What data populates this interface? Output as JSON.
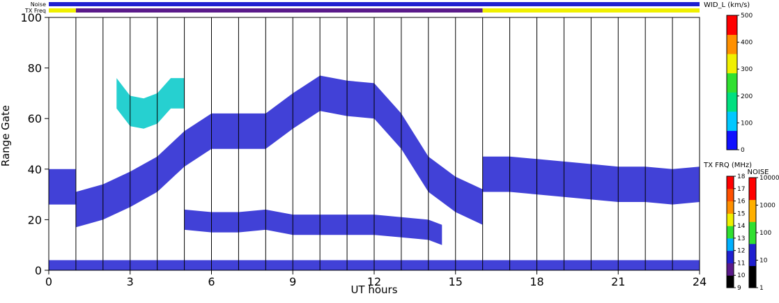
{
  "chart_data": {
    "type": "heatmap",
    "xlabel": "UT hours",
    "ylabel": "Range Gate",
    "xlim": [
      0,
      24
    ],
    "ylim": [
      0,
      100
    ],
    "x_ticks": [
      0,
      3,
      6,
      9,
      12,
      15,
      18,
      21,
      24
    ],
    "y_ticks": [
      0,
      20,
      40,
      60,
      80,
      100
    ],
    "vertical_gridlines_hours": [
      1,
      2,
      3,
      4,
      5,
      6,
      7,
      8,
      9,
      10,
      11,
      12,
      13,
      14,
      15,
      16,
      17,
      18,
      19,
      20,
      21,
      22,
      23
    ],
    "top_strips": [
      {
        "label": "Noise",
        "segments": [
          [
            0,
            24,
            "#2020d0"
          ]
        ]
      },
      {
        "label": "TX Freq",
        "segments": [
          [
            0,
            1,
            "#f0f000"
          ],
          [
            1,
            16,
            "#5a1a8a"
          ],
          [
            16,
            24,
            "#f0f000"
          ]
        ]
      }
    ],
    "colorbars": [
      {
        "title": "WID_L (km/s)",
        "range": [
          0,
          500
        ],
        "ticks": [
          0,
          100,
          200,
          300,
          400,
          500
        ],
        "colors": [
          "#1010ff",
          "#00c8ff",
          "#00e080",
          "#30e030",
          "#f0f000",
          "#ff9000",
          "#ff0000"
        ]
      },
      {
        "title": "TX FRQ (MHz)",
        "ticks": [
          9,
          10,
          11,
          12,
          13,
          14,
          15,
          16,
          17,
          18
        ],
        "colors": [
          "#000000",
          "#5a1a8a",
          "#2020d0",
          "#00b0ff",
          "#30e030",
          "#f0f000",
          "#ff9000",
          "#ff5000",
          "#ff0000"
        ]
      },
      {
        "title": "NOISE",
        "ticks": [
          "1",
          "10",
          "100",
          "1000",
          "10000"
        ],
        "colors": [
          "#000000",
          "#2020d0",
          "#30e030",
          "#ffb000",
          "#ff0000"
        ]
      }
    ],
    "features": [
      {
        "name": "dominant-echo",
        "color": "#2020d0",
        "x": [
          0,
          1,
          1,
          2,
          3,
          4,
          5,
          6,
          7,
          8,
          9,
          10,
          11,
          12,
          13,
          14,
          15,
          16,
          16,
          17,
          18,
          19,
          20,
          21,
          22,
          23,
          24
        ],
        "y": [
          33,
          33,
          24,
          27,
          32,
          38,
          48,
          55,
          55,
          55,
          63,
          70,
          68,
          67,
          55,
          38,
          30,
          25,
          38,
          38,
          37,
          36,
          35,
          34,
          34,
          33,
          34
        ],
        "thickness": 7
      },
      {
        "name": "low-band",
        "color": "#2020d0",
        "x": [
          5,
          6,
          7,
          8,
          9,
          10,
          11,
          12,
          13,
          14,
          14.5
        ],
        "y": [
          20,
          19,
          19,
          20,
          18,
          18,
          18,
          18,
          17,
          16,
          14
        ],
        "thickness": 4
      },
      {
        "name": "ground-gates",
        "color": "#2020d0",
        "x": [
          0,
          24
        ],
        "y": [
          2,
          2
        ],
        "thickness": 2
      },
      {
        "name": "cusp-patch",
        "color": "#00c8c8",
        "x": [
          2.5,
          3,
          3.5,
          4,
          4.5,
          5
        ],
        "y": [
          70,
          63,
          62,
          64,
          70,
          70
        ],
        "thickness": 6
      }
    ]
  }
}
